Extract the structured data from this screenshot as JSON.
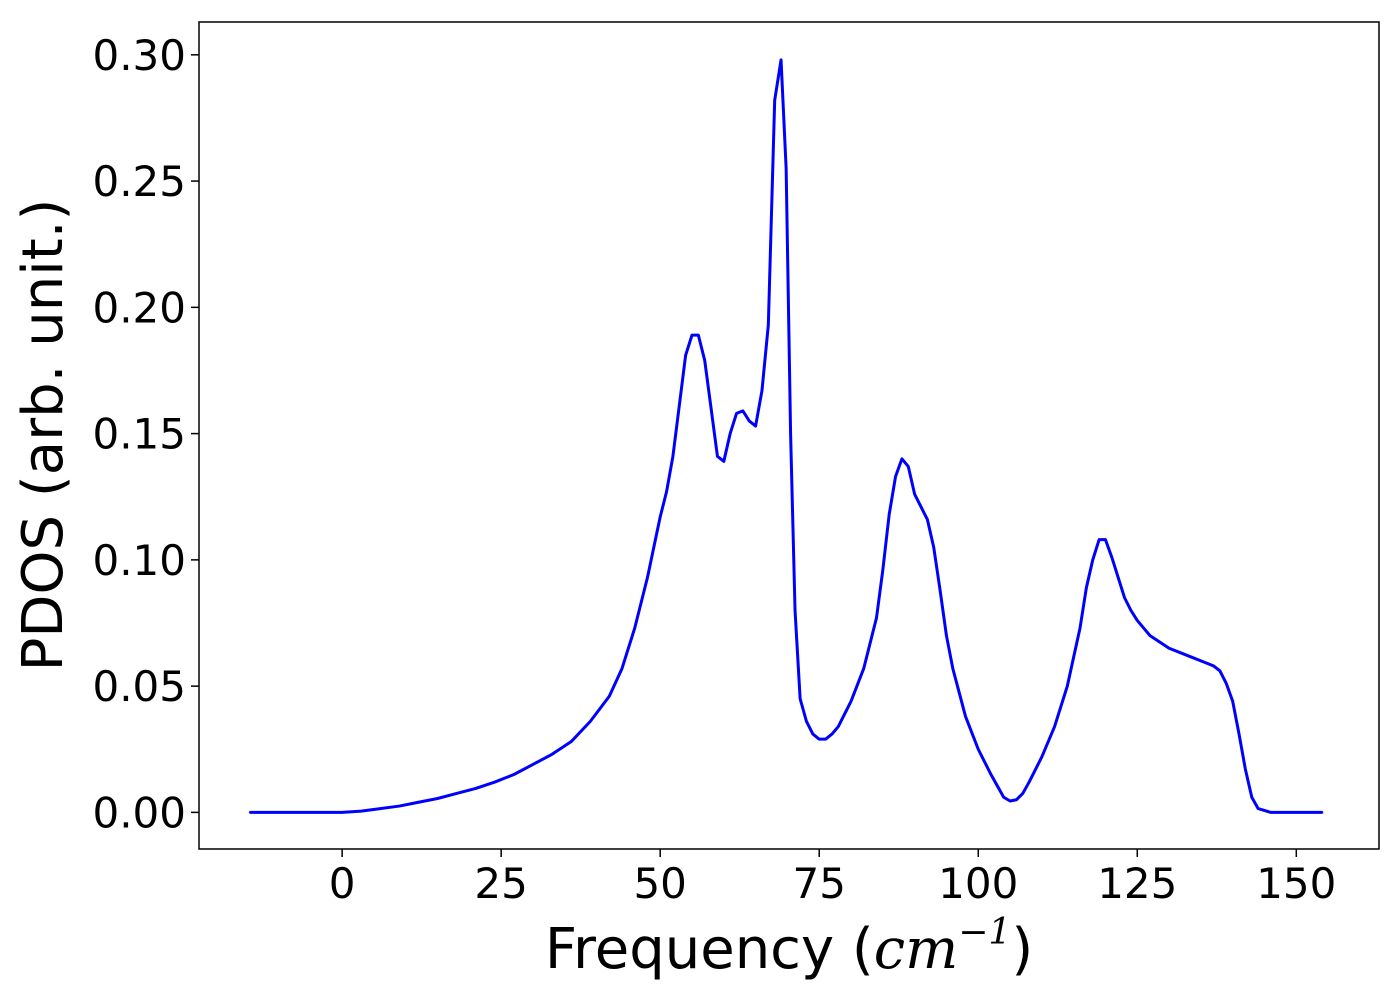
{
  "chart_data": {
    "type": "line",
    "title": "",
    "xlabel": "Frequency (",
    "xlabel_math": "cm",
    "xlabel_exponent": "−1",
    "xlabel_close": ")",
    "ylabel": "PDOS (arb. unit.)",
    "xlim": [
      -22.5,
      163
    ],
    "ylim": [
      -0.0145,
      0.313
    ],
    "x_ticks": [
      0,
      25,
      50,
      75,
      100,
      125,
      150
    ],
    "x_tick_labels": [
      "0",
      "25",
      "50",
      "75",
      "100",
      "125",
      "150"
    ],
    "y_ticks": [
      0.0,
      0.05,
      0.1,
      0.15,
      0.2,
      0.25,
      0.3
    ],
    "y_tick_labels": [
      "0.00",
      "0.05",
      "0.10",
      "0.15",
      "0.20",
      "0.25",
      "0.30"
    ],
    "grid": false,
    "legend": "none",
    "series": [
      {
        "color": "#0000ff",
        "x": [
          -14.4,
          0,
          3,
          6,
          9,
          12,
          15,
          18,
          21,
          24,
          27,
          30,
          33,
          36,
          39,
          42,
          44,
          46,
          48,
          49,
          50,
          51,
          52,
          53,
          54,
          55,
          56,
          57,
          58,
          59,
          60,
          61,
          62,
          63,
          64,
          65,
          66,
          67,
          68,
          69,
          69.8,
          70.5,
          71.2,
          72,
          73,
          74,
          75,
          76,
          77,
          78,
          80,
          82,
          84,
          85,
          86,
          87,
          88,
          89,
          90,
          91,
          92,
          93,
          94,
          95,
          96,
          98,
          100,
          102,
          104,
          105,
          106,
          107,
          108,
          110,
          112,
          114,
          116,
          117,
          118,
          119,
          120,
          121,
          122,
          123,
          124,
          125,
          127,
          130,
          133,
          136,
          137,
          138,
          139,
          140,
          141,
          142,
          143,
          144,
          146,
          150,
          154
        ],
        "values": [
          0.0,
          0.0,
          0.0005,
          0.0015,
          0.0025,
          0.004,
          0.0055,
          0.0075,
          0.0095,
          0.012,
          0.015,
          0.019,
          0.023,
          0.028,
          0.036,
          0.046,
          0.057,
          0.073,
          0.093,
          0.105,
          0.117,
          0.127,
          0.141,
          0.161,
          0.181,
          0.189,
          0.189,
          0.179,
          0.16,
          0.141,
          0.139,
          0.15,
          0.158,
          0.159,
          0.155,
          0.153,
          0.167,
          0.193,
          0.282,
          0.298,
          0.255,
          0.15,
          0.08,
          0.045,
          0.036,
          0.031,
          0.029,
          0.029,
          0.031,
          0.034,
          0.044,
          0.057,
          0.077,
          0.096,
          0.118,
          0.133,
          0.14,
          0.137,
          0.126,
          0.121,
          0.116,
          0.105,
          0.088,
          0.07,
          0.057,
          0.038,
          0.025,
          0.015,
          0.006,
          0.0045,
          0.005,
          0.0075,
          0.012,
          0.022,
          0.034,
          0.05,
          0.073,
          0.089,
          0.1,
          0.108,
          0.108,
          0.101,
          0.093,
          0.085,
          0.08,
          0.076,
          0.07,
          0.065,
          0.062,
          0.059,
          0.058,
          0.056,
          0.051,
          0.044,
          0.031,
          0.017,
          0.006,
          0.0015,
          0.0,
          0.0,
          0.0
        ]
      }
    ]
  }
}
